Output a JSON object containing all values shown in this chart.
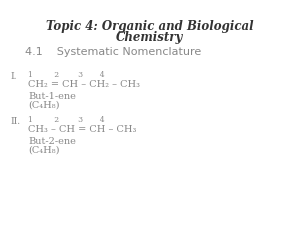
{
  "title_line1": "Topic 4: Organic and Biological",
  "title_line2": "Chemistry",
  "subtitle": "4.1    Systematic Nomenclature",
  "bg_color": "#ffffff",
  "text_color": "#333333",
  "gray_color": "#888888",
  "sec1_label": "I.",
  "sec1_numbers": "1         2        3       4",
  "sec1_formula": "CH₂ = CH – CH₂ – CH₃",
  "sec1_name": "But-1-ene",
  "sec1_molform": "(C₄H₈)",
  "sec2_label": "II.",
  "sec2_numbers": "1         2        3       4",
  "sec2_formula": "CH₃ – CH = CH – CH₃",
  "sec2_name": "But-2-ene",
  "sec2_molform": "(C₄H₈)"
}
